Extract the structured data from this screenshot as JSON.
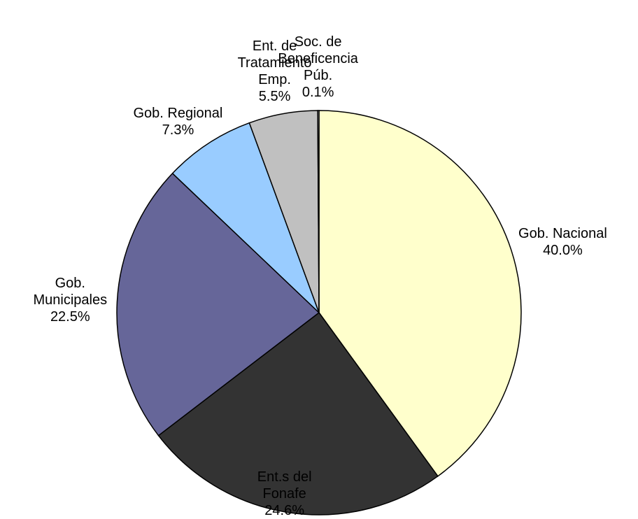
{
  "chart_data": {
    "type": "pie",
    "categories": [
      "Gob. Nacional",
      "Ent.s del\nFonafe",
      "Gob.\nMunicipales",
      "Gob. Regional",
      "Ent. de\nTratamiento\nEmp.",
      "Soc. de\nBeneficencia\nPúb."
    ],
    "values": [
      40.0,
      24.6,
      22.5,
      7.3,
      5.5,
      0.1
    ],
    "value_labels": [
      "40.0%",
      "24.6%",
      "22.5%",
      "7.3%",
      "5.5%",
      "0.1%"
    ],
    "colors": [
      "#FFFFCC",
      "#333333",
      "#666699",
      "#99CCFF",
      "#C0C0C0",
      "#FFFFFF"
    ]
  }
}
